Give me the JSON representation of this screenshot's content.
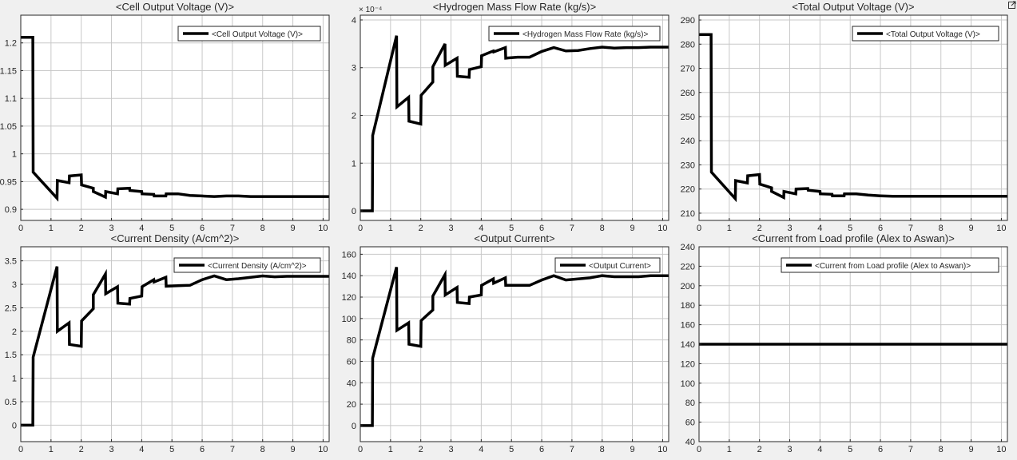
{
  "figure": {
    "undock_icon": "undock-arrow-icon"
  },
  "chart_data": [
    {
      "type": "line",
      "title": "<Cell Output Voltage (V)>",
      "xlim": [
        0,
        10.2
      ],
      "ylim": [
        0.88,
        1.25
      ],
      "xticks": [
        0,
        1,
        2,
        3,
        4,
        5,
        6,
        7,
        8,
        9,
        10
      ],
      "yticks": [
        0.9,
        0.95,
        1,
        1.05,
        1.1,
        1.15,
        1.2
      ],
      "ytick_labels": [
        "0.9",
        "0.95",
        "1",
        "1.05",
        "1.1",
        "1.15",
        "1.2"
      ],
      "exponent_label": "",
      "grid": true,
      "legend_position": "top-right",
      "series": [
        {
          "name": "<Cell Output Voltage (V)>",
          "x": [
            0,
            0.4,
            0.41,
            1.2,
            1.21,
            1.6,
            1.61,
            2.0,
            2.01,
            2.4,
            2.4,
            2.8,
            2.81,
            3.2,
            3.21,
            3.6,
            3.61,
            4.0,
            4.01,
            4.4,
            4.41,
            4.8,
            4.81,
            5.2,
            5.6,
            6.0,
            6.4,
            6.8,
            7.2,
            7.6,
            8.0,
            8.4,
            8.8,
            9.2,
            9.6,
            10.2
          ],
          "y": [
            1.21,
            1.21,
            0.967,
            0.92,
            0.952,
            0.948,
            0.96,
            0.962,
            0.944,
            0.938,
            0.932,
            0.922,
            0.932,
            0.928,
            0.937,
            0.938,
            0.934,
            0.932,
            0.928,
            0.927,
            0.924,
            0.924,
            0.928,
            0.928,
            0.925,
            0.924,
            0.923,
            0.924,
            0.924,
            0.923,
            0.923,
            0.923,
            0.923,
            0.923,
            0.923,
            0.923
          ]
        }
      ]
    },
    {
      "type": "line",
      "title": "<Hydrogen Mass Flow Rate (kg/s)>",
      "xlim": [
        0,
        10.2
      ],
      "ylim": [
        -2e-05,
        0.00041
      ],
      "xticks": [
        0,
        1,
        2,
        3,
        4,
        5,
        6,
        7,
        8,
        9,
        10
      ],
      "yticks": [
        0,
        0.0001,
        0.0002,
        0.0003,
        0.0004
      ],
      "ytick_labels": [
        "0",
        "1",
        "2",
        "3",
        "4"
      ],
      "exponent_label": "× 10⁻⁴",
      "grid": true,
      "legend_position": "top-right",
      "series": [
        {
          "name": "<Hydrogen Mass Flow Rate (kg/s)>",
          "x": [
            0,
            0.4,
            0.41,
            1.2,
            1.21,
            1.6,
            1.61,
            2.0,
            2.01,
            2.4,
            2.4,
            2.8,
            2.81,
            3.2,
            3.21,
            3.6,
            3.61,
            4.0,
            4.01,
            4.4,
            4.41,
            4.8,
            4.81,
            5.2,
            5.6,
            6.0,
            6.4,
            6.8,
            7.2,
            7.6,
            8.0,
            8.4,
            8.8,
            9.2,
            9.6,
            10.2
          ],
          "y": [
            0,
            0,
            0.000158,
            0.000367,
            0.000218,
            0.000238,
            0.000188,
            0.000182,
            0.000242,
            0.00027,
            0.000302,
            0.00035,
            0.000305,
            0.00032,
            0.000282,
            0.00028,
            0.000296,
            0.000302,
            0.000325,
            0.000335,
            0.000333,
            0.000342,
            0.00032,
            0.000322,
            0.000322,
            0.000334,
            0.000342,
            0.000335,
            0.000336,
            0.00034,
            0.000343,
            0.000341,
            0.000342,
            0.000342,
            0.000343,
            0.000343
          ]
        }
      ]
    },
    {
      "type": "line",
      "title": "<Total Output Voltage (V)>",
      "xlim": [
        0,
        10.2
      ],
      "ylim": [
        207,
        292
      ],
      "xticks": [
        0,
        1,
        2,
        3,
        4,
        5,
        6,
        7,
        8,
        9,
        10
      ],
      "yticks": [
        210,
        220,
        230,
        240,
        250,
        260,
        270,
        280,
        290
      ],
      "ytick_labels": [
        "210",
        "220",
        "230",
        "240",
        "250",
        "260",
        "270",
        "280",
        "290"
      ],
      "exponent_label": "",
      "grid": true,
      "legend_position": "top-right",
      "series": [
        {
          "name": "<Total Output Voltage (V)>",
          "x": [
            0,
            0.4,
            0.41,
            1.2,
            1.21,
            1.6,
            1.61,
            2.0,
            2.01,
            2.4,
            2.4,
            2.8,
            2.81,
            3.2,
            3.21,
            3.6,
            3.61,
            4.0,
            4.01,
            4.4,
            4.41,
            4.8,
            4.81,
            5.2,
            5.6,
            6.0,
            6.4,
            6.8,
            7.2,
            7.6,
            8.0,
            8.4,
            8.8,
            9.2,
            9.6,
            10.2
          ],
          "y": [
            284,
            284,
            227,
            216,
            223.5,
            222.5,
            225.5,
            226,
            222,
            220.5,
            219,
            216.5,
            219,
            218,
            220,
            220.2,
            219.5,
            219,
            218,
            217.8,
            217.2,
            217.2,
            218,
            218,
            217.5,
            217.2,
            217,
            217,
            217,
            217,
            217,
            217,
            217,
            217,
            217,
            217
          ]
        }
      ]
    },
    {
      "type": "line",
      "title": "<Current Density (A/cm^2)>",
      "xlim": [
        0,
        10.2
      ],
      "ylim": [
        -0.35,
        3.8
      ],
      "xticks": [
        0,
        1,
        2,
        3,
        4,
        5,
        6,
        7,
        8,
        9,
        10
      ],
      "yticks": [
        0,
        0.5,
        1,
        1.5,
        2,
        2.5,
        3,
        3.5
      ],
      "ytick_labels": [
        "0",
        "0.5",
        "1",
        "1.5",
        "2",
        "2.5",
        "3",
        "3.5"
      ],
      "exponent_label": "",
      "grid": true,
      "legend_position": "top-right",
      "series": [
        {
          "name": "<Current Density (A/cm^2)>",
          "x": [
            0,
            0.4,
            0.41,
            1.2,
            1.21,
            1.6,
            1.61,
            2.0,
            2.01,
            2.4,
            2.4,
            2.8,
            2.81,
            3.2,
            3.21,
            3.6,
            3.61,
            4.0,
            4.01,
            4.4,
            4.41,
            4.8,
            4.81,
            5.2,
            5.6,
            6.0,
            6.4,
            6.8,
            7.2,
            7.6,
            8.0,
            8.4,
            8.8,
            9.2,
            9.6,
            10.2
          ],
          "y": [
            0,
            0,
            1.45,
            3.38,
            2.0,
            2.18,
            1.72,
            1.68,
            2.22,
            2.48,
            2.78,
            3.22,
            2.8,
            2.95,
            2.6,
            2.58,
            2.7,
            2.75,
            2.95,
            3.1,
            3.05,
            3.15,
            2.96,
            2.97,
            2.98,
            3.1,
            3.18,
            3.1,
            3.12,
            3.15,
            3.18,
            3.16,
            3.17,
            3.17,
            3.17,
            3.17
          ]
        }
      ]
    },
    {
      "type": "line",
      "title": "<Output Current>",
      "xlim": [
        0,
        10.2
      ],
      "ylim": [
        -15,
        167
      ],
      "xticks": [
        0,
        1,
        2,
        3,
        4,
        5,
        6,
        7,
        8,
        9,
        10
      ],
      "yticks": [
        0,
        20,
        40,
        60,
        80,
        100,
        120,
        140,
        160
      ],
      "ytick_labels": [
        "0",
        "20",
        "40",
        "60",
        "80",
        "100",
        "120",
        "140",
        "160"
      ],
      "exponent_label": "",
      "grid": true,
      "legend_position": "top-right",
      "series": [
        {
          "name": "<Output Current>",
          "x": [
            0,
            0.4,
            0.41,
            1.2,
            1.21,
            1.6,
            1.61,
            2.0,
            2.01,
            2.4,
            2.4,
            2.8,
            2.81,
            3.2,
            3.21,
            3.6,
            3.61,
            4.0,
            4.01,
            4.4,
            4.41,
            4.8,
            4.81,
            5.2,
            5.6,
            6.0,
            6.4,
            6.8,
            7.2,
            7.6,
            8.0,
            8.4,
            8.8,
            9.2,
            9.6,
            10.2
          ],
          "y": [
            0,
            0,
            63,
            148,
            89,
            96,
            76,
            74,
            98,
            108,
            121,
            141,
            122,
            129,
            115,
            114,
            120,
            122,
            131,
            137,
            133,
            138,
            131,
            131,
            131,
            136,
            140,
            136,
            137,
            138,
            140,
            139,
            139,
            139,
            140,
            140
          ]
        }
      ]
    },
    {
      "type": "line",
      "title": "<Current from Load profile (Alex to Aswan)>",
      "xlim": [
        0,
        10.2
      ],
      "ylim": [
        40,
        240
      ],
      "xticks": [
        0,
        1,
        2,
        3,
        4,
        5,
        6,
        7,
        8,
        9,
        10
      ],
      "yticks": [
        40,
        60,
        80,
        100,
        120,
        140,
        160,
        180,
        200,
        220,
        240
      ],
      "ytick_labels": [
        "40",
        "60",
        "80",
        "100",
        "120",
        "140",
        "160",
        "180",
        "200",
        "220",
        "240"
      ],
      "exponent_label": "",
      "grid": true,
      "legend_position": "top-right",
      "series": [
        {
          "name": "<Current from Load profile (Alex to Aswan)>",
          "x": [
            0,
            10.2
          ],
          "y": [
            140,
            140
          ]
        }
      ]
    }
  ]
}
